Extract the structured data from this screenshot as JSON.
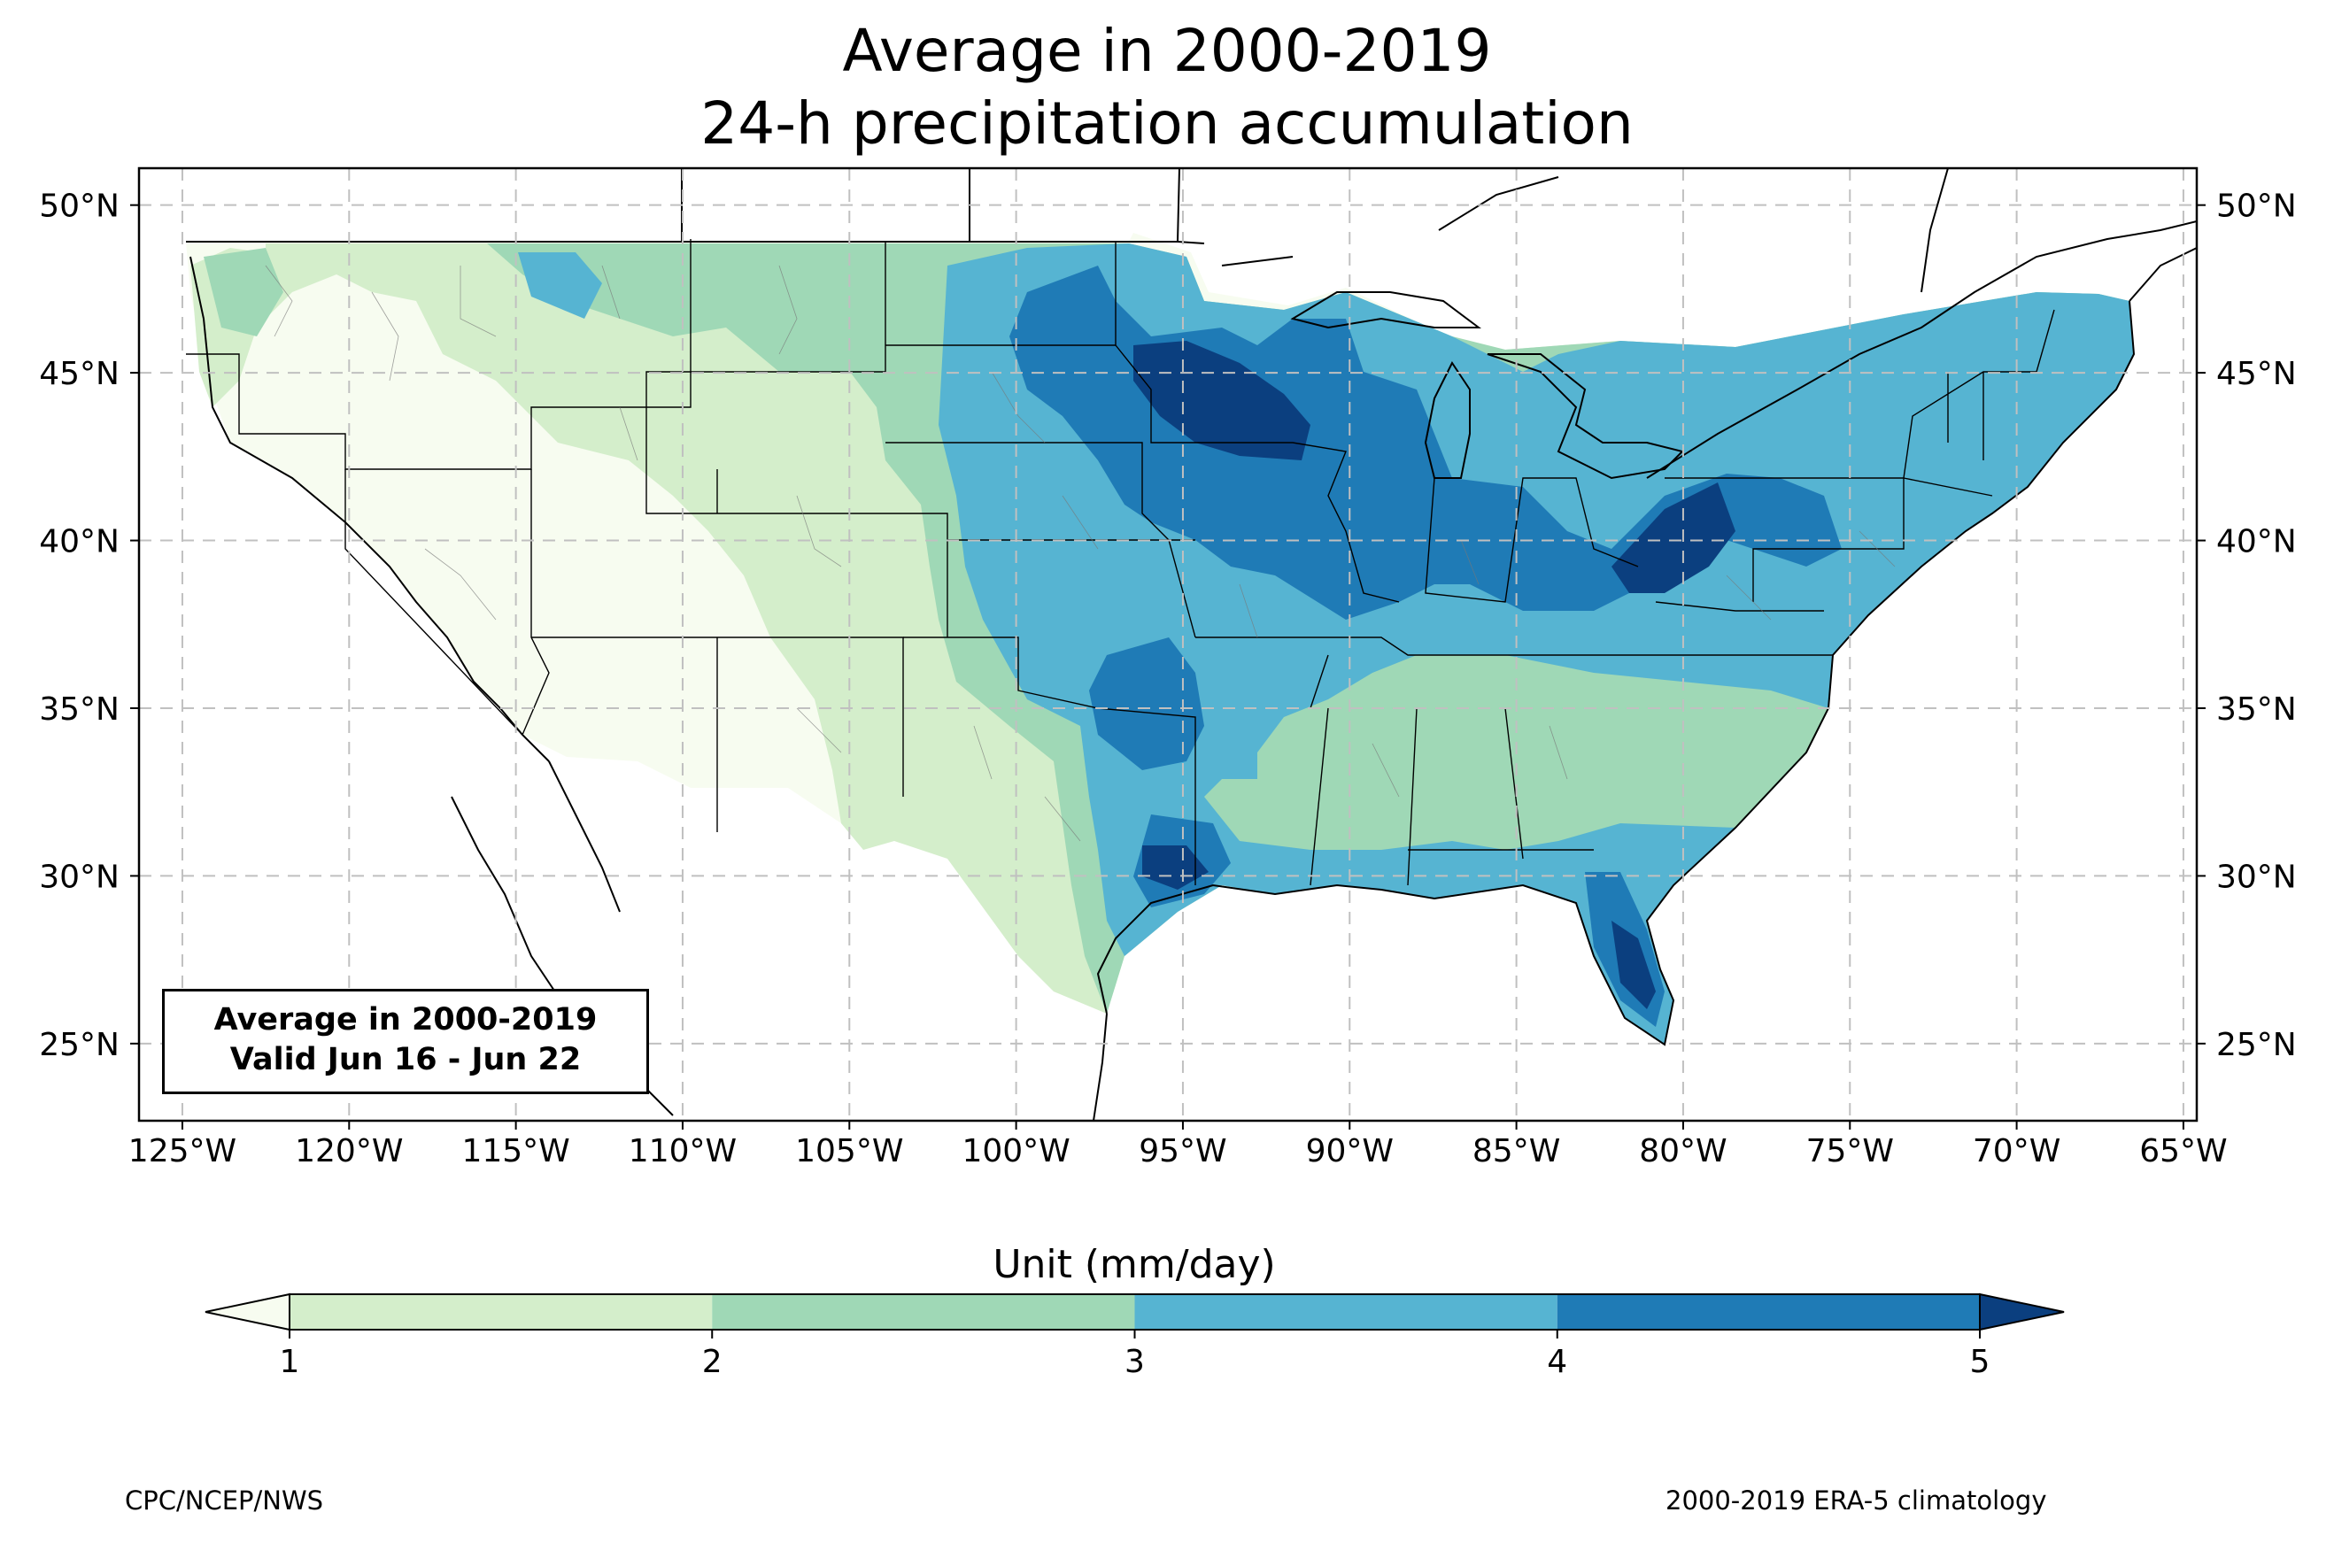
{
  "title": {
    "line1": "Average in 2000-2019",
    "line2": "24-h precipitation accumulation"
  },
  "map": {
    "projection": "PlateCarree",
    "lon_range": [
      -126.3,
      -64.6
    ],
    "lat_range": [
      22.7,
      51.1
    ],
    "gridlines": "dashed",
    "lon_ticks": [
      "125°W",
      "120°W",
      "115°W",
      "110°W",
      "105°W",
      "100°W",
      "95°W",
      "90°W",
      "85°W",
      "80°W",
      "75°W",
      "70°W",
      "65°W"
    ],
    "lat_ticks": [
      "50°N",
      "45°N",
      "40°N",
      "35°N",
      "30°N",
      "25°N"
    ],
    "label_box": {
      "line1": "Average in 2000-2019",
      "line2": "Valid Jun 16 - Jun 22"
    }
  },
  "colorbar": {
    "title": "Unit (mm/day)",
    "levels": [
      1,
      2,
      3,
      4,
      5
    ],
    "tick_labels": [
      "1",
      "2",
      "3",
      "4",
      "5"
    ],
    "extend": "both",
    "colors": {
      "below_1": "#f7fcf0",
      "1_2": "#d4eecb",
      "2_3": "#9fd8b6",
      "3_4": "#56b4d2",
      "4_5": "#1f7bb6",
      "above_5": "#0b3f7f"
    }
  },
  "footer": {
    "left": "CPC/NCEP/NWS",
    "right": "2000-2019 ERA-5 climatology"
  }
}
